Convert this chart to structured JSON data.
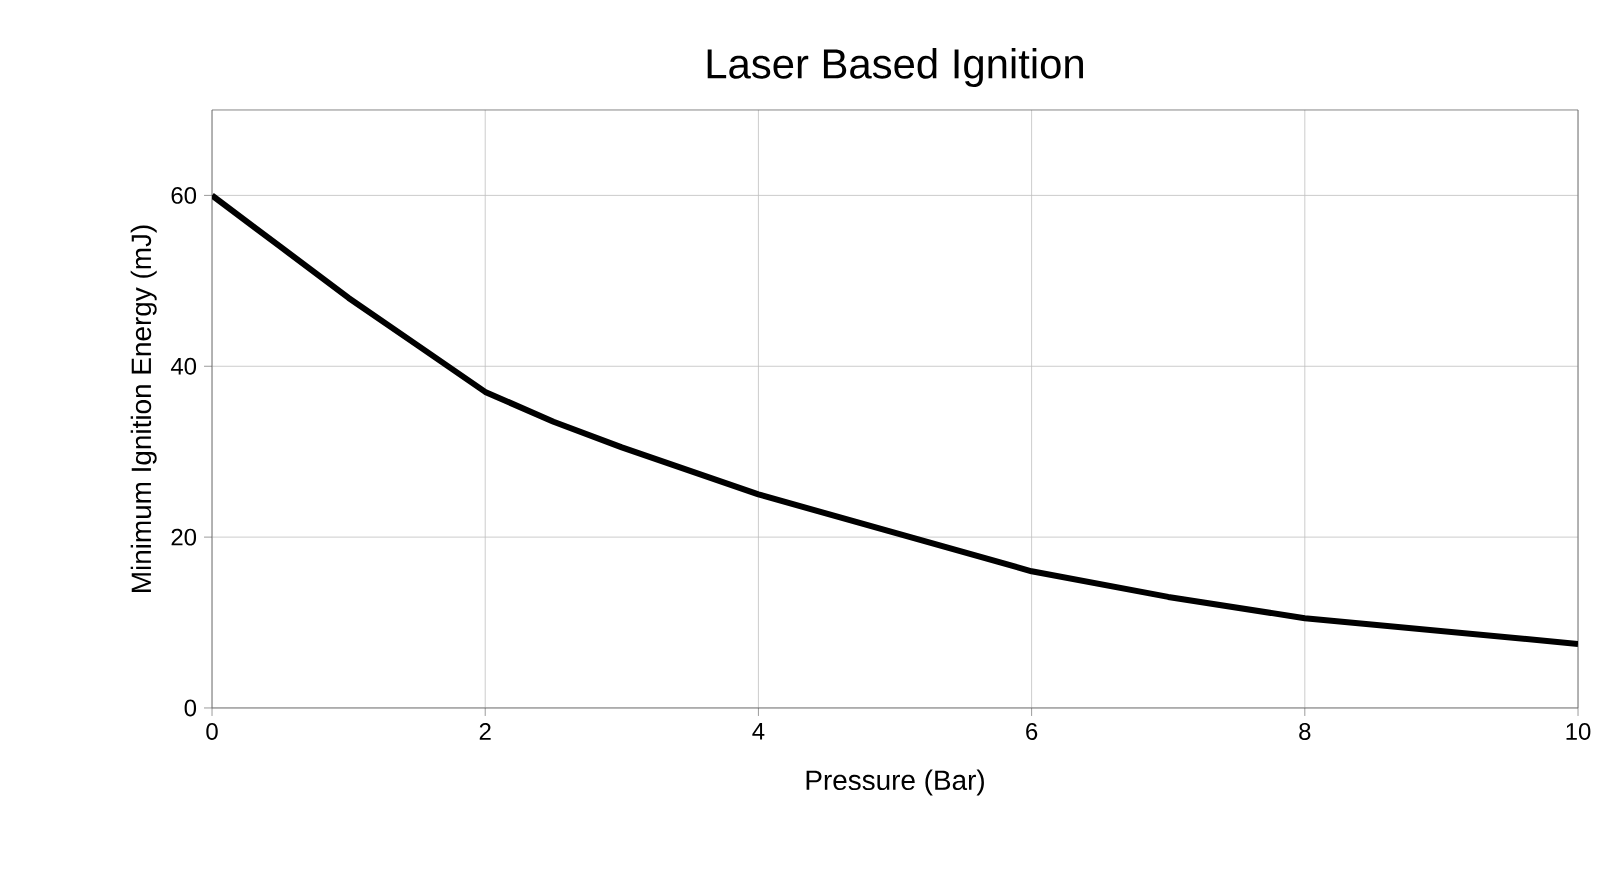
{
  "chart_data": {
    "type": "line",
    "title": "Laser Based Ignition",
    "xlabel": "Pressure (Bar)",
    "ylabel": "Minimum Ignition Energy (mJ)",
    "x": [
      0,
      0.5,
      1,
      1.5,
      2,
      2.5,
      3,
      4,
      5,
      6,
      7,
      8,
      9,
      10
    ],
    "series": [
      {
        "color": "#000000",
        "values": [
          60,
          54,
          48,
          42.5,
          37,
          33.5,
          30.5,
          25,
          20.5,
          16,
          13,
          10.5,
          9,
          7.5
        ]
      }
    ],
    "xlim": [
      0,
      10
    ],
    "xticks": [
      0,
      2,
      4,
      6,
      8,
      10
    ],
    "ylim": [
      0,
      70
    ],
    "yticks": [
      0,
      20,
      40,
      60
    ],
    "grid": true,
    "marker": "none",
    "line_style": "solid"
  }
}
